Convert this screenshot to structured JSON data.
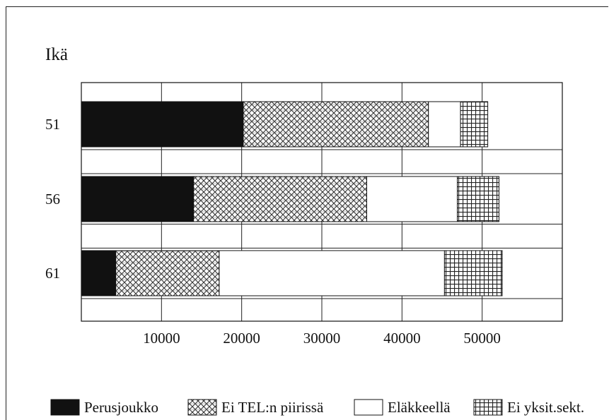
{
  "chart_data": {
    "type": "bar",
    "orientation": "horizontal",
    "stacked": true,
    "title": "",
    "ylabel": "Ikä",
    "xlabel": "",
    "categories": [
      "51",
      "56",
      "61"
    ],
    "x_ticks": [
      10000,
      20000,
      30000,
      40000,
      50000
    ],
    "xlim": [
      0,
      60000
    ],
    "grid": true,
    "legend_position": "bottom",
    "series": [
      {
        "name": "Perusjoukko",
        "pattern": "solid",
        "color": "#111111",
        "values": [
          20200,
          14000,
          4300
        ]
      },
      {
        "name": "Ei TEL:n piirissä",
        "pattern": "crosshatch",
        "color": "#555555",
        "values": [
          23100,
          21600,
          12900
        ]
      },
      {
        "name": "Eläkkeellä",
        "pattern": "none",
        "color": "#ffffff",
        "values": [
          4000,
          11300,
          28100
        ]
      },
      {
        "name": "Ei yksit.sekt.",
        "pattern": "grid",
        "color": "#222222",
        "values": [
          3400,
          5200,
          7200
        ]
      }
    ]
  }
}
